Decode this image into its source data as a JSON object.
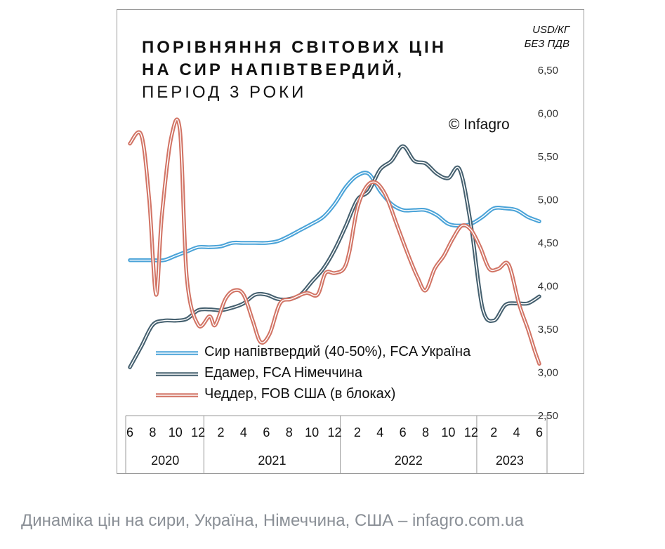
{
  "caption": "Динаміка цін на сири, Україна, Німеччина, США – infagro.com.ua",
  "chart_data": {
    "type": "line",
    "title_lines": [
      "ПОРІВНЯННЯ СВІТОВИХ ЦІН",
      "НА СИР НАПІВТВЕРДИЙ,",
      "ПЕРІОД 3 РОКИ"
    ],
    "unit_lines": [
      "USD/КГ",
      "БЕЗ ПДВ"
    ],
    "copyright": "© Infagro",
    "ylim": [
      2.5,
      6.5
    ],
    "y_ticks": [
      6.5,
      6.0,
      5.5,
      5.0,
      4.5,
      4.0,
      3.5,
      3.0,
      2.5
    ],
    "y_tick_labels": [
      "6,50",
      "6,00",
      "5,50",
      "5,00",
      "4,50",
      "4,00",
      "3,50",
      "3,00",
      "2,50"
    ],
    "x_range": [
      0,
      36
    ],
    "month_ticks": [
      {
        "label": "6",
        "x": 0
      },
      {
        "label": "8",
        "x": 2
      },
      {
        "label": "10",
        "x": 4
      },
      {
        "label": "12",
        "x": 6
      },
      {
        "label": "2",
        "x": 8
      },
      {
        "label": "4",
        "x": 10
      },
      {
        "label": "6",
        "x": 12
      },
      {
        "label": "8",
        "x": 14
      },
      {
        "label": "10",
        "x": 16
      },
      {
        "label": "12",
        "x": 18
      },
      {
        "label": "2",
        "x": 20
      },
      {
        "label": "4",
        "x": 22
      },
      {
        "label": "6",
        "x": 24
      },
      {
        "label": "8",
        "x": 26
      },
      {
        "label": "10",
        "x": 28
      },
      {
        "label": "12",
        "x": 30
      },
      {
        "label": "2",
        "x": 32
      },
      {
        "label": "4",
        "x": 34
      },
      {
        "label": "6",
        "x": 36
      }
    ],
    "years": [
      {
        "label": "2020",
        "start": -0.5,
        "end": 6.5
      },
      {
        "label": "2021",
        "start": 6.5,
        "end": 18.5
      },
      {
        "label": "2022",
        "start": 18.5,
        "end": 30.5
      },
      {
        "label": "2023",
        "start": 30.5,
        "end": 36.5
      }
    ],
    "year_separators": [
      6.5,
      18.5,
      30.5
    ],
    "series": [
      {
        "name": "Сир напівтвердий (40-50%), FCA Україна",
        "color": "#4aa3d8",
        "x": [
          0,
          1,
          2,
          3,
          4,
          5,
          6,
          7,
          8,
          9,
          10,
          11,
          12,
          13,
          14,
          15,
          16,
          17,
          18,
          19,
          20,
          21,
          22,
          23,
          24,
          25,
          26,
          27,
          28,
          29,
          30,
          31,
          32,
          33,
          34,
          35,
          36
        ],
        "y": [
          4.3,
          4.3,
          4.3,
          4.3,
          4.35,
          4.4,
          4.45,
          4.45,
          4.46,
          4.5,
          4.5,
          4.5,
          4.5,
          4.52,
          4.58,
          4.65,
          4.72,
          4.8,
          4.95,
          5.15,
          5.28,
          5.3,
          5.1,
          4.95,
          4.88,
          4.88,
          4.88,
          4.82,
          4.72,
          4.7,
          4.72,
          4.8,
          4.9,
          4.9,
          4.88,
          4.8,
          4.75
        ]
      },
      {
        "name": "Едамер, FCA Німеччина",
        "color": "#45606f",
        "x": [
          0,
          1,
          2,
          3,
          4,
          5,
          6,
          7,
          8,
          9,
          10,
          11,
          12,
          13,
          14,
          15,
          16,
          17,
          18,
          19,
          20,
          21,
          22,
          23,
          24,
          25,
          26,
          27,
          28,
          29,
          30,
          31,
          32,
          33,
          34,
          35,
          36
        ],
        "y": [
          3.06,
          3.3,
          3.55,
          3.6,
          3.6,
          3.62,
          3.72,
          3.73,
          3.72,
          3.75,
          3.8,
          3.9,
          3.9,
          3.85,
          3.85,
          3.9,
          4.05,
          4.2,
          4.42,
          4.7,
          5.0,
          5.1,
          5.35,
          5.45,
          5.62,
          5.45,
          5.42,
          5.3,
          5.25,
          5.35,
          4.7,
          3.75,
          3.6,
          3.78,
          3.8,
          3.8,
          3.88
        ]
      },
      {
        "name": "Чеддер, FOB США (в блоках)",
        "color": "#d27465",
        "x": [
          0,
          1,
          1.7,
          2.3,
          2.8,
          3.6,
          4.4,
          5.0,
          6.0,
          7.0,
          7.5,
          8.4,
          9.2,
          10.0,
          10.8,
          11.5,
          12.3,
          13.2,
          14.2,
          15.5,
          16.5,
          17.2,
          18.0,
          18.8,
          19.3,
          20.0,
          20.8,
          21.6,
          22.5,
          23.5,
          24.5,
          25.3,
          26.0,
          26.8,
          27.6,
          28.4,
          29.2,
          30.0,
          30.8,
          31.6,
          32.4,
          33.3,
          34.2,
          35.0,
          35.6,
          36.0
        ],
        "y": [
          5.65,
          5.75,
          5.0,
          3.9,
          4.8,
          5.7,
          5.8,
          4.1,
          3.55,
          3.65,
          3.55,
          3.85,
          3.95,
          3.9,
          3.6,
          3.35,
          3.45,
          3.8,
          3.85,
          3.92,
          3.9,
          4.15,
          4.15,
          4.2,
          4.4,
          4.9,
          5.15,
          5.2,
          5.05,
          4.7,
          4.35,
          4.1,
          3.95,
          4.2,
          4.35,
          4.55,
          4.7,
          4.65,
          4.45,
          4.2,
          4.2,
          4.25,
          3.8,
          3.5,
          3.25,
          3.1
        ]
      }
    ]
  }
}
